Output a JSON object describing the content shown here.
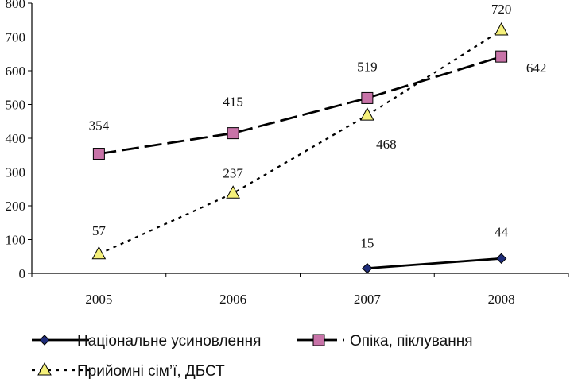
{
  "chart_data": {
    "type": "line",
    "categories": [
      "2005",
      "2006",
      "2007",
      "2008"
    ],
    "ylim": [
      0,
      800
    ],
    "yticks": [
      "0",
      "100",
      "200",
      "300",
      "400",
      "500",
      "600",
      "700",
      "800"
    ],
    "grid": false,
    "legend_position": "bottom",
    "series": [
      {
        "name": "Національне усиновлення",
        "values": [
          null,
          null,
          15,
          44
        ],
        "labels": [
          "",
          "",
          "15",
          "44"
        ],
        "marker": "diamond",
        "line_style": "solid",
        "marker_color": "#1f2d7a"
      },
      {
        "name": "Опіка, піклування",
        "values": [
          354,
          415,
          519,
          642
        ],
        "labels": [
          "354",
          "415",
          "519",
          "642"
        ],
        "marker": "square",
        "line_style": "dashed",
        "marker_color": "#c873a8"
      },
      {
        "name": "Прийомні сім’ї, ДБСТ",
        "values": [
          57,
          237,
          468,
          720
        ],
        "labels": [
          "57",
          "237",
          "468",
          "720"
        ],
        "marker": "triangle",
        "line_style": "dotted",
        "marker_color": "#f5f07a"
      }
    ]
  }
}
